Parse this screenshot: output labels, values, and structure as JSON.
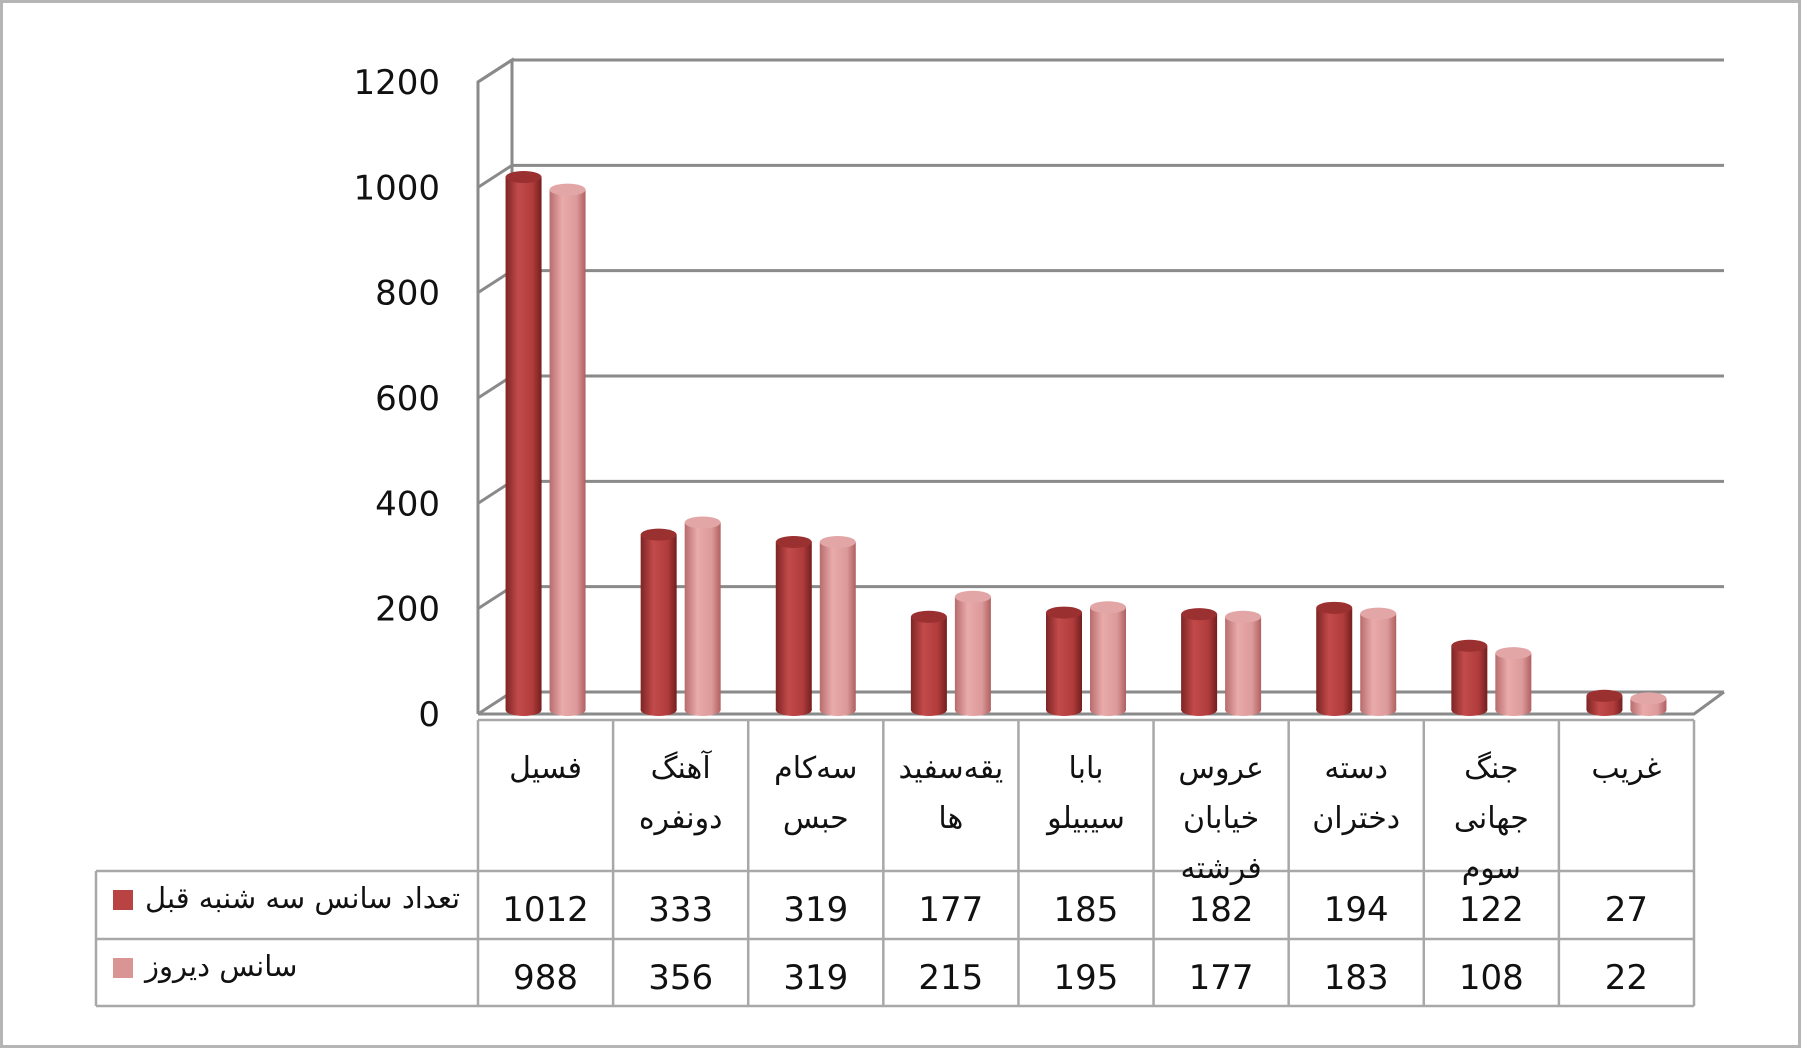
{
  "chart_data": {
    "type": "bar",
    "title": "",
    "xlabel": "",
    "ylabel": "",
    "ylim": [
      0,
      1200
    ],
    "yticks": [
      "0",
      "200",
      "400",
      "600",
      "800",
      "1000",
      "1200"
    ],
    "grid": true,
    "legend": "data-table-left",
    "categories": [
      [
        "فسیل"
      ],
      [
        "آهنگ",
        "دونفره"
      ],
      [
        "سه‌کام",
        "حبس"
      ],
      [
        "یقه‌سفید",
        "ها"
      ],
      [
        "بابا",
        "سیبیلو"
      ],
      [
        "عروس",
        "خیابان",
        "فرشته"
      ],
      [
        "دسته",
        "دختران"
      ],
      [
        "جنگ",
        "جهانی",
        "سوم"
      ],
      [
        "غریب"
      ]
    ],
    "series": [
      {
        "name": "تعداد سانس سه شنبه قبل",
        "color": "#b94343",
        "values": [
          1012,
          333,
          319,
          177,
          185,
          182,
          194,
          122,
          27
        ]
      },
      {
        "name": "سانس دیروز",
        "color": "#d99494",
        "values": [
          988,
          356,
          319,
          215,
          195,
          177,
          183,
          108,
          22
        ]
      }
    ]
  }
}
